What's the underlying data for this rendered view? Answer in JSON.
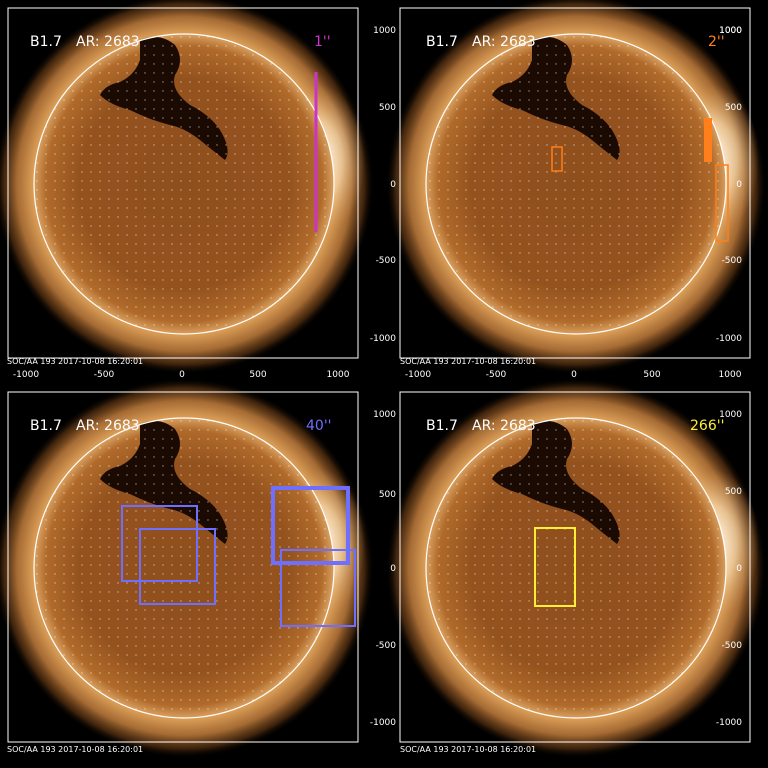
{
  "page": {
    "background": "#000000"
  },
  "panels": [
    {
      "id": "top-left",
      "flare_class": "B1.7",
      "ar_label": "AR: 2683",
      "scale_label": "1''",
      "scale_color": "#cc33cc",
      "footer": "SOC/AA 193   2017-10-08  16:20:01",
      "x_ticks": [
        "-1000",
        "-500",
        "0",
        "500",
        "1000"
      ],
      "y_ticks": [
        "1000",
        "500",
        "0",
        "-500",
        "-1000"
      ],
      "x_axis_shown": true,
      "y_axis_shown": true
    },
    {
      "id": "top-right",
      "flare_class": "B1.7",
      "ar_label": "AR: 2683",
      "scale_label": "2''",
      "scale_color": "#ff7f1a",
      "footer": "SOC/AA 193   2017-10-08  16:20:01",
      "x_ticks": [
        "-1000",
        "-500",
        "0",
        "500",
        "1000"
      ],
      "y_ticks": [
        "1000",
        "500",
        "0",
        "-500",
        "-1000"
      ],
      "x_axis_shown": true,
      "y_axis_shown": true
    },
    {
      "id": "bottom-left",
      "flare_class": "B1.7",
      "ar_label": "AR: 2683",
      "scale_label": "40''",
      "scale_color": "#6f6fff",
      "footer": "SOC/AA 193   2017-10-08  16:20:01",
      "x_ticks": [],
      "y_ticks": [
        "500",
        "0",
        "-500"
      ],
      "x_axis_shown": false,
      "y_axis_shown": true
    },
    {
      "id": "bottom-right",
      "flare_class": "B1.7",
      "ar_label": "AR: 2683",
      "scale_label": "266''",
      "scale_color": "#ffee33",
      "footer": "SOC/AA 193   2017-10-08  16:20:01",
      "x_ticks": [],
      "y_ticks": [
        "1000",
        "500",
        "0",
        "-500",
        "-1000"
      ],
      "x_axis_shown": false,
      "y_axis_shown": true
    }
  ],
  "colors": {
    "sun_core": "#a65d20",
    "sun_mid": "#8a4a18",
    "corona": "#c98a45",
    "limb_bright": "#fff4d8",
    "coronal_hole": "#1a0a02",
    "grid": "#ffffff"
  }
}
